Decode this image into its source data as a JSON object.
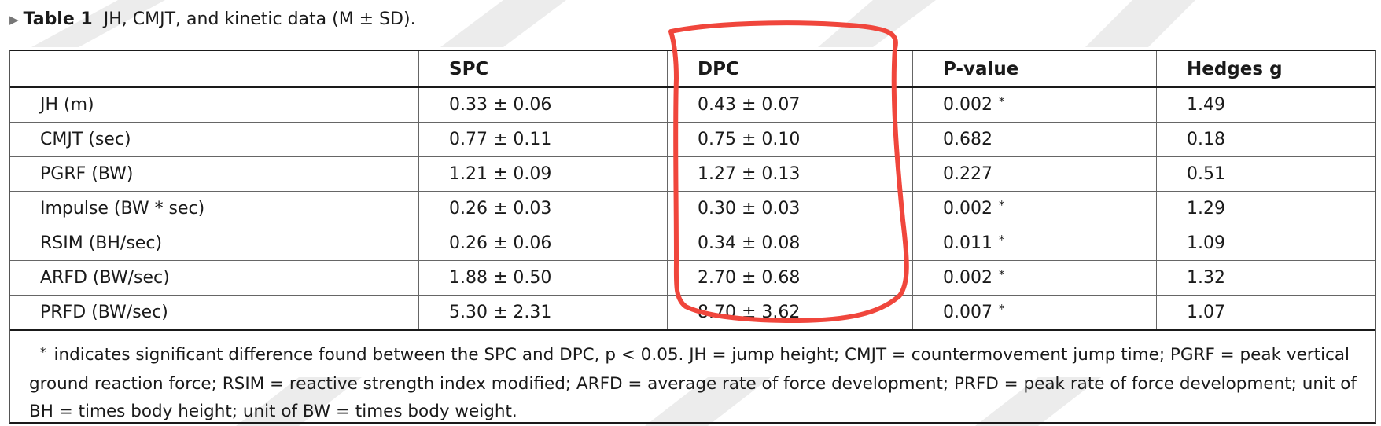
{
  "caption": {
    "label": "Table 1",
    "text": "JH, CMJT, and kinetic data (M ± SD)."
  },
  "table": {
    "headers": [
      "",
      "SPC",
      "DPC",
      "P-value",
      "Hedges g"
    ],
    "rows": [
      {
        "measure": "JH (m)",
        "spc": "0.33 ± 0.06",
        "dpc": "0.43 ± 0.07",
        "p": "0.002",
        "sig": "*",
        "g": "1.49"
      },
      {
        "measure": "CMJT (sec)",
        "spc": "0.77 ± 0.11",
        "dpc": "0.75 ± 0.10",
        "p": "0.682",
        "sig": "",
        "g": "0.18"
      },
      {
        "measure": "PGRF (BW)",
        "spc": "1.21 ± 0.09",
        "dpc": "1.27 ± 0.13",
        "p": "0.227",
        "sig": "",
        "g": "0.51"
      },
      {
        "measure": "Impulse (BW * sec)",
        "spc": "0.26 ± 0.03",
        "dpc": "0.30 ± 0.03",
        "p": "0.002",
        "sig": "*",
        "g": "1.29"
      },
      {
        "measure": "RSIM (BH/sec)",
        "spc": "0.26 ± 0.06",
        "dpc": "0.34 ± 0.08",
        "p": "0.011",
        "sig": "*",
        "g": "1.09"
      },
      {
        "measure": "ARFD (BW/sec)",
        "spc": "1.88 ± 0.50",
        "dpc": "2.70 ± 0.68",
        "p": "0.002",
        "sig": "*",
        "g": "1.32"
      },
      {
        "measure": "PRFD (BW/sec)",
        "spc": "5.30 ± 2.31",
        "dpc": "8.70 ± 3.62",
        "p": "0.007",
        "sig": "*",
        "g": "1.07"
      }
    ],
    "footnote": {
      "star": "*",
      "text": "indicates significant difference found between the SPC and DPC, p < 0.05. JH = jump height; CMJT = countermovement jump time; PGRF = peak vertical ground reaction force; RSIM = reactive strength index modified; ARFD = average rate of force development; PRFD = peak rate of force development; unit of BH = times body height; unit of BW = times body weight."
    }
  },
  "colors": {
    "highlight": "#f0463c",
    "watermark": "#ececec",
    "text": "#1a1a1a"
  }
}
